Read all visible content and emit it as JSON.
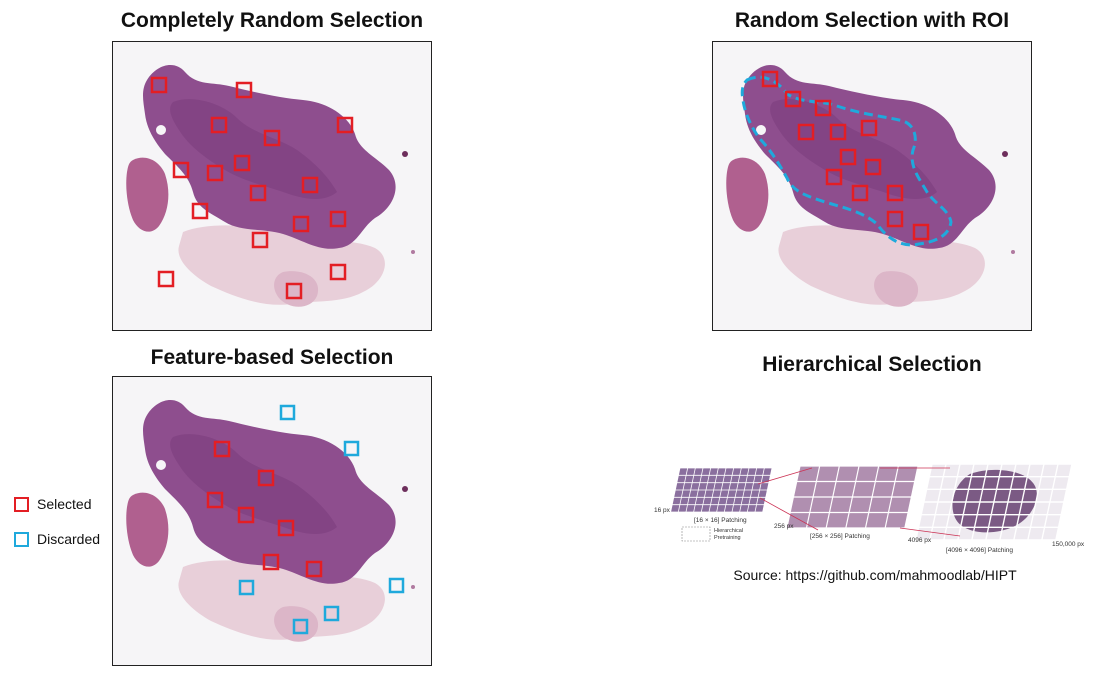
{
  "panels": [
    {
      "id": "random",
      "title": "Completely Random Selection"
    },
    {
      "id": "roi",
      "title": "Random Selection with ROI"
    },
    {
      "id": "feature",
      "title": "Feature-based Selection"
    },
    {
      "id": "hier",
      "title": "Hierarchical Selection"
    }
  ],
  "legend": {
    "selected": {
      "label": "Selected",
      "color": "#e31e24"
    },
    "discarded": {
      "label": "Discarded",
      "color": "#1fa9dc"
    }
  },
  "roi_color": "#1fa9dc",
  "hipt": {
    "label_16px": "16 px",
    "label_16_patching": "[16 × 16] Patching",
    "label_256px": "256 px",
    "label_256_patching": "[256 × 256] Patching",
    "label_4096px": "4096 px",
    "label_4096_patching": "[4096 × 4096] Patching",
    "label_150000px": "150,000 px",
    "label_pretraining_1": "Hierarchical",
    "label_pretraining_2": "Pretraining"
  },
  "source": "Source: https://github.com/mahmoodlab/HIPT"
}
